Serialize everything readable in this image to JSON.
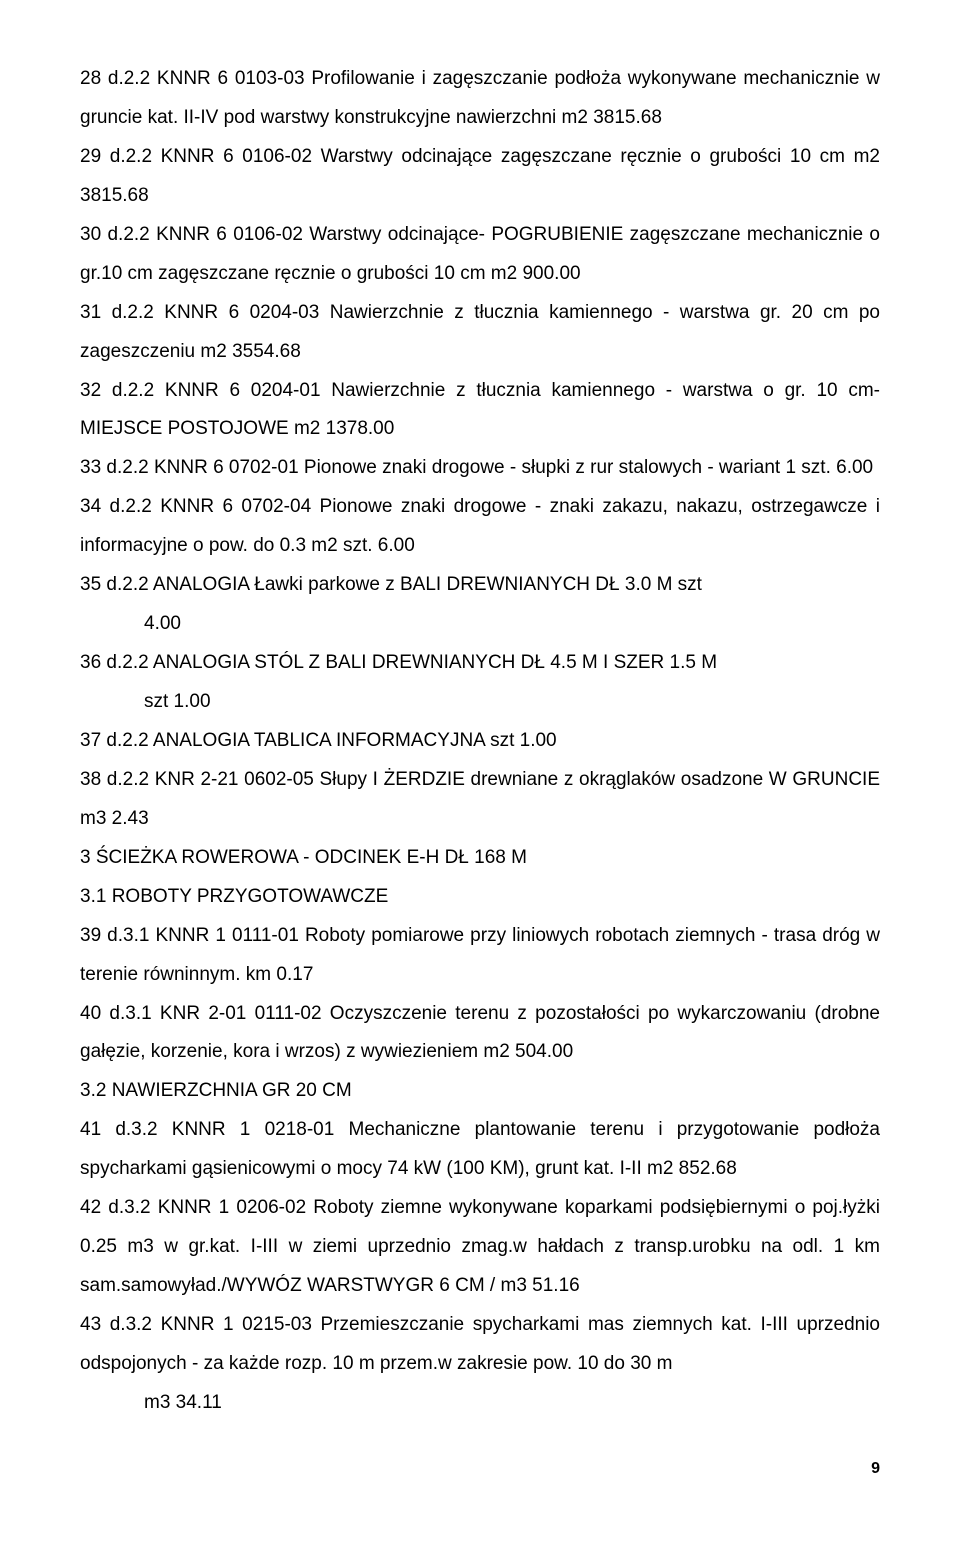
{
  "lines": {
    "l1": "28 d.2.2      KNNR 6 0103-03      Profilowanie i zagęszczanie podłoża wykonywane mechanicznie w gruncie kat. II-IV pod warstwy konstrukcyjne nawierzchni    m2    3815.68",
    "l2": "29 d.2.2      KNNR 6 0106-02      Warstwy odcinające zagęszczane ręcznie o grubości 10 cm m2    3815.68",
    "l3": "30 d.2.2      KNNR 6 0106-02      Warstwy odcinające- POGRUBIENIE zagęszczane mechanicznie o gr.10 cm zagęszczane ręcznie o grubości 10 cm    m2    900.00",
    "l4": "31 d.2.2      KNNR 6 0204-03      Nawierzchnie z tłucznia kamiennego - warstwa gr. 20 cm po zageszczeniu      m2    3554.68",
    "l5": "32 d.2.2      KNNR 6 0204-01      Nawierzchnie z tłucznia kamiennego - warstwa o gr. 10 cm-MIEJSCE POSTOJOWE      m2    1378.00",
    "l6": "33 d.2.2      KNNR 6 0702-01      Pionowe znaki drogowe - słupki z rur stalowych - wariant 1 szt.    6.00",
    "l7": "34 d.2.2      KNNR 6 0702-04      Pionowe znaki drogowe - znaki zakazu, nakazu, ostrzegawcze i informacyjne o pow. do 0.3 m2 szt.    6.00",
    "l8": "35 d.2.2       ANALOGIA  Ławki parkowe z  BALI DREWNIANYCH DŁ 3.0 M    szt",
    "l8b": "4.00",
    "l9": "36 d.2.2       ANALOGIA  STÓL Z BALI  DREWNIANYCH  DŁ 4.5 M I SZER 1.5 M",
    "l9b": "szt    1.00",
    "l10": "37 d.2.2       ANALOGIA  TABLICA INFORMACYJNA    szt    1.00",
    "l11": "38 d.2.2      KNR 2-21 0602-05  Słupy I ŻERDZIE  drewniane z okrąglaków osadzone W  GRUNCIE      m3    2.43",
    "l12": "3       ŚCIEŻKA ROWEROWA  - ODCINEK E-H DŁ 168  M",
    "l13": "3.1        ROBOTY PRZYGOTOWAWCZE",
    "l14": "39 d.3.1      KNNR 1 0111-01      Roboty pomiarowe przy liniowych robotach ziemnych - trasa dróg w terenie równinnym.   km    0.17",
    "l15": "40 d.3.1      KNR 2-01 0111-02  Oczyszczenie terenu z pozostałości po wykarczowaniu (drobne gałęzie, korzenie, kora i wrzos) z wywiezieniem      m2    504.00",
    "l16": "3.2       NAWIERZCHNIA GR 20 CM",
    "l17": "41 d.3.2      KNNR 1 0218-01      Mechaniczne plantowanie terenu i przygotowanie podłoża spycharkami gąsienicowymi o mocy 74 kW (100 KM), grunt kat. I-II  m2    852.68",
    "l18": "42 d.3.2      KNNR 1 0206-02      Roboty ziemne wykonywane koparkami podsiębiernymi o poj.łyżki 0.25 m3 w gr.kat. I-III w ziemi uprzednio zmag.w hałdach z transp.urobku na odl. 1 km sam.samowyład./WYWÓZ WARSTWYGR 6 CM /    m3    51.16",
    "l19": "43 d.3.2      KNNR 1 0215-03      Przemieszczanie spycharkami mas ziemnych kat. I-III uprzednio odspojonych - za każde rozp. 10 m przem.w zakresie pow. 10 do 30 m",
    "l19b": "m3    34.11"
  },
  "page_number": "9"
}
